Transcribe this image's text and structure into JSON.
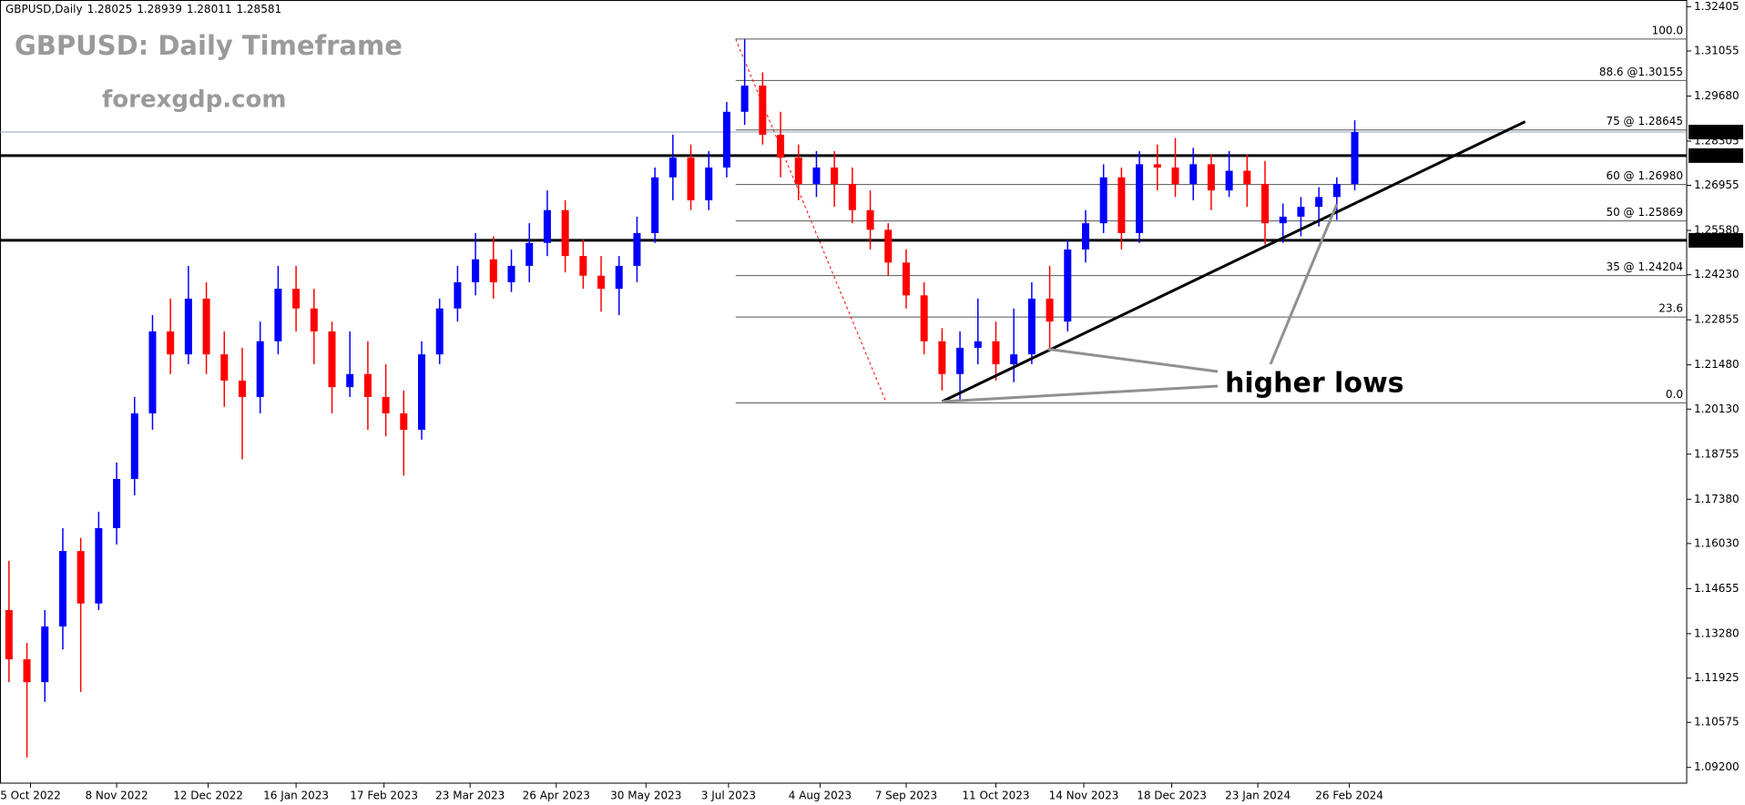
{
  "chart_data": {
    "type": "candlestick",
    "symbol": "GBPUSD,Daily",
    "header_values": [
      1.28025,
      1.28939,
      1.28011,
      1.28581
    ],
    "title": "GBPUSD: Daily Timeframe",
    "subtitle": "forexgdp.com",
    "up_color": "#0000ff",
    "down_color": "#ff0000",
    "xlim": [
      0,
      94
    ],
    "xticks": [
      {
        "value": 1.7,
        "label": "5 Oct 2022"
      },
      {
        "value": 6.5,
        "label": "8 Nov 2022"
      },
      {
        "value": 11.6,
        "label": "12 Dec 2022"
      },
      {
        "value": 16.5,
        "label": "16 Jan 2023"
      },
      {
        "value": 21.4,
        "label": "17 Feb 2023"
      },
      {
        "value": 26.2,
        "label": "23 Mar 2023"
      },
      {
        "value": 31.0,
        "label": "26 Apr 2023"
      },
      {
        "value": 36.0,
        "label": "30 May 2023"
      },
      {
        "value": 40.6,
        "label": "3 Jul 2023"
      },
      {
        "value": 45.7,
        "label": "4 Aug 2023"
      },
      {
        "value": 50.5,
        "label": "7 Sep 2023"
      },
      {
        "value": 55.5,
        "label": "11 Oct 2023"
      },
      {
        "value": 60.4,
        "label": "14 Nov 2023"
      },
      {
        "value": 65.3,
        "label": "18 Dec 2023"
      },
      {
        "value": 70.1,
        "label": "23 Jan 2024"
      },
      {
        "value": 75.2,
        "label": "26 Feb 2024"
      }
    ],
    "ylim": [
      1.0872,
      1.3261
    ],
    "yticks": [
      {
        "value": 1.092,
        "label": "1.09200"
      },
      {
        "value": 1.10575,
        "label": "1.10575"
      },
      {
        "value": 1.11925,
        "label": "1.11925"
      },
      {
        "value": 1.1328,
        "label": "1.13280"
      },
      {
        "value": 1.14655,
        "label": "1.14655"
      },
      {
        "value": 1.1603,
        "label": "1.16030"
      },
      {
        "value": 1.1738,
        "label": "1.17380"
      },
      {
        "value": 1.18755,
        "label": "1.18755"
      },
      {
        "value": 1.2013,
        "label": "1.20130"
      },
      {
        "value": 1.2148,
        "label": "1.21480"
      },
      {
        "value": 1.22855,
        "label": "1.22855"
      },
      {
        "value": 1.2423,
        "label": "1.24230"
      },
      {
        "value": 1.2558,
        "label": "1.25580"
      },
      {
        "value": 1.26955,
        "label": "1.26955"
      },
      {
        "value": 1.28305,
        "label": "1.28305"
      },
      {
        "value": 1.2968,
        "label": "1.29680"
      },
      {
        "value": 1.31055,
        "label": "1.31055"
      },
      {
        "value": 1.32405,
        "label": "1.32405"
      }
    ],
    "open": [
      1.14,
      1.125,
      1.118,
      1.135,
      1.158,
      1.142,
      1.165,
      1.18,
      1.2,
      1.225,
      1.218,
      1.235,
      1.218,
      1.21,
      1.205,
      1.222,
      1.238,
      1.232,
      1.225,
      1.208,
      1.212,
      1.205,
      1.2,
      1.195,
      1.218,
      1.232,
      1.24,
      1.247,
      1.24,
      1.245,
      1.252,
      1.262,
      1.248,
      1.242,
      1.238,
      1.245,
      1.255,
      1.272,
      1.278,
      1.265,
      1.275,
      1.292,
      1.3,
      1.285,
      1.278,
      1.27,
      1.275,
      1.27,
      1.262,
      1.256,
      1.246,
      1.236,
      1.222,
      1.212,
      1.22,
      1.222,
      1.215,
      1.218,
      1.235,
      1.228,
      1.25,
      1.258,
      1.272,
      1.255,
      1.276,
      1.275,
      1.27,
      1.276,
      1.268,
      1.274,
      1.27,
      1.258,
      1.26,
      1.263,
      1.266,
      1.27
    ],
    "high": [
      1.155,
      1.13,
      1.14,
      1.165,
      1.162,
      1.17,
      1.185,
      1.205,
      1.23,
      1.235,
      1.245,
      1.24,
      1.225,
      1.22,
      1.228,
      1.245,
      1.245,
      1.238,
      1.228,
      1.225,
      1.222,
      1.215,
      1.207,
      1.222,
      1.235,
      1.245,
      1.255,
      1.254,
      1.25,
      1.258,
      1.268,
      1.265,
      1.253,
      1.248,
      1.248,
      1.26,
      1.275,
      1.285,
      1.282,
      1.28,
      1.295,
      1.3142,
      1.304,
      1.292,
      1.282,
      1.28,
      1.28,
      1.275,
      1.268,
      1.258,
      1.25,
      1.24,
      1.226,
      1.225,
      1.235,
      1.228,
      1.232,
      1.24,
      1.245,
      1.253,
      1.262,
      1.276,
      1.275,
      1.28,
      1.282,
      1.284,
      1.281,
      1.279,
      1.28,
      1.279,
      1.277,
      1.264,
      1.266,
      1.269,
      1.272,
      1.28939
    ],
    "low": [
      1.118,
      1.095,
      1.112,
      1.128,
      1.115,
      1.14,
      1.16,
      1.175,
      1.195,
      1.212,
      1.215,
      1.212,
      1.202,
      1.186,
      1.2,
      1.218,
      1.225,
      1.215,
      1.2,
      1.205,
      1.195,
      1.193,
      1.181,
      1.192,
      1.215,
      1.228,
      1.236,
      1.235,
      1.237,
      1.24,
      1.248,
      1.243,
      1.238,
      1.231,
      1.23,
      1.24,
      1.252,
      1.265,
      1.262,
      1.262,
      1.272,
      1.288,
      1.282,
      1.272,
      1.265,
      1.266,
      1.263,
      1.258,
      1.25,
      1.242,
      1.232,
      1.218,
      1.207,
      1.2037,
      1.215,
      1.21,
      1.2095,
      1.215,
      1.22,
      1.225,
      1.246,
      1.255,
      1.25,
      1.252,
      1.268,
      1.266,
      1.265,
      1.262,
      1.266,
      1.263,
      1.2515,
      1.252,
      1.254,
      1.257,
      1.259,
      1.268
    ],
    "close": [
      1.125,
      1.118,
      1.135,
      1.158,
      1.142,
      1.165,
      1.18,
      1.2,
      1.225,
      1.218,
      1.235,
      1.218,
      1.21,
      1.205,
      1.222,
      1.238,
      1.232,
      1.225,
      1.208,
      1.212,
      1.205,
      1.2,
      1.195,
      1.218,
      1.232,
      1.24,
      1.247,
      1.24,
      1.245,
      1.252,
      1.262,
      1.248,
      1.242,
      1.238,
      1.245,
      1.255,
      1.272,
      1.278,
      1.265,
      1.275,
      1.292,
      1.3,
      1.285,
      1.278,
      1.27,
      1.275,
      1.27,
      1.262,
      1.256,
      1.246,
      1.236,
      1.222,
      1.212,
      1.22,
      1.222,
      1.215,
      1.218,
      1.235,
      1.228,
      1.25,
      1.258,
      1.272,
      1.255,
      1.276,
      1.275,
      1.27,
      1.276,
      1.268,
      1.274,
      1.27,
      1.258,
      1.26,
      1.263,
      1.266,
      1.27,
      1.28581
    ],
    "levels": [
      {
        "price": 1.27864
      },
      {
        "price": 1.25279
      }
    ],
    "last_price": 1.28581,
    "fib_start": 41,
    "fib_levels": [
      {
        "label": "100.0",
        "price": 1.3142
      },
      {
        "label": "88.6 @1.30155",
        "price": 1.30155
      },
      {
        "label": "75  @ 1.28645",
        "price": 1.28645
      },
      {
        "label": "60  @ 1.26980",
        "price": 1.2698
      },
      {
        "label": "50  @ 1.25869",
        "price": 1.25869
      },
      {
        "label": "35  @ 1.24204",
        "price": 1.24204
      },
      {
        "label": "23.6",
        "price": 1.2294
      },
      {
        "label": "0.0",
        "price": 1.2032
      }
    ],
    "fib_anchor": {
      "x": [
        41,
        49.4
      ],
      "y": [
        1.3142,
        1.2032
      ]
    },
    "trendline": {
      "x": [
        52.5,
        85
      ],
      "y": [
        1.2036,
        1.289
      ]
    },
    "annotation": {
      "text": "higher lows",
      "points": {
        "x": [
          58.4,
          52.5,
          74.5
        ],
        "y": [
          1.2196,
          1.2036,
          1.2638
        ]
      }
    }
  }
}
